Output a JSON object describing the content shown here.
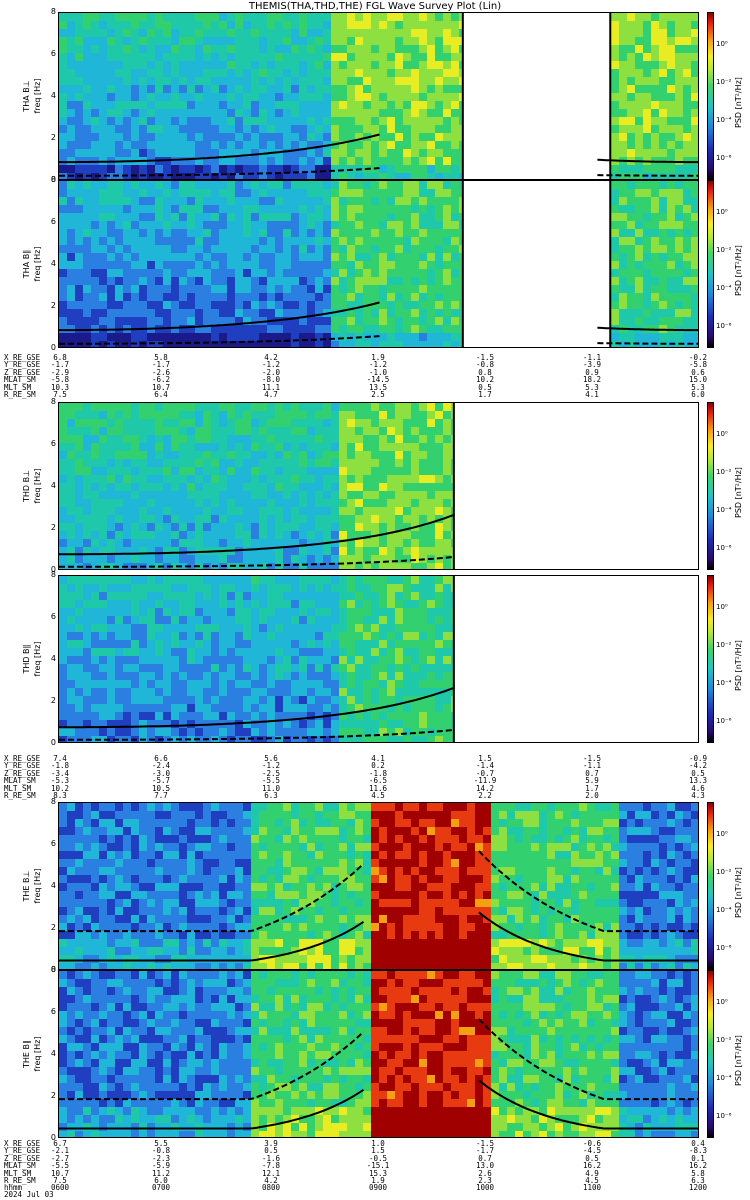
{
  "title": "THEMIS(THA,THD,THE) FGL Wave Survey Plot (Lin)",
  "chart_data": [
    {
      "type": "heatmap",
      "probe": "THA",
      "ylabel": "THA B⊥",
      "ylabel2": "freq [Hz]",
      "ylim": [
        0,
        8
      ],
      "yticks": [
        0,
        2,
        4,
        6,
        8
      ],
      "zlabel": "PSD [nT²/Hz]",
      "zticks": [
        "10⁰",
        "10⁻²",
        "10⁻⁴",
        "10⁻⁶"
      ],
      "data_gap": [
        0.63,
        0.86
      ],
      "burst_start": 0.41
    },
    {
      "type": "heatmap",
      "probe": "THA",
      "ylabel": "THA B∥",
      "ylabel2": "freq [Hz]",
      "ylim": [
        0,
        8
      ],
      "yticks": [
        0,
        2,
        4,
        6,
        8
      ],
      "zlabel": "PSD [nT²/Hz]",
      "zticks": [
        "10⁰",
        "10⁻²",
        "10⁻⁴",
        "10⁻⁶"
      ],
      "data_gap": [
        0.63,
        0.86
      ],
      "burst_start": 0.41
    },
    {
      "type": "heatmap",
      "probe": "THD",
      "ylabel": "THD B⊥",
      "ylabel2": "freq [Hz]",
      "ylim": [
        0,
        8
      ],
      "yticks": [
        0,
        2,
        4,
        6,
        8
      ],
      "zlabel": "PSD [nT²/Hz]",
      "zticks": [
        "10⁰",
        "10⁻²",
        "10⁻⁴",
        "10⁻⁶"
      ],
      "data_end": 0.616,
      "burst_start": 0.43
    },
    {
      "type": "heatmap",
      "probe": "THD",
      "ylabel": "THD B∥",
      "ylabel2": "freq [Hz]",
      "ylim": [
        0,
        8
      ],
      "yticks": [
        0,
        2,
        4,
        6,
        8
      ],
      "zlabel": "PSD [nT²/Hz]",
      "zticks": [
        "10⁰",
        "10⁻²",
        "10⁻⁴",
        "10⁻⁶"
      ],
      "data_end": 0.616,
      "burst_start": 0.43
    },
    {
      "type": "heatmap",
      "probe": "THE",
      "ylabel": "THE B⊥",
      "ylabel2": "freq [Hz]",
      "ylim": [
        0,
        8
      ],
      "yticks": [
        0,
        2,
        4,
        6,
        8
      ],
      "zlabel": "PSD [nT²/Hz]",
      "zticks": [
        "10⁰",
        "10⁻²",
        "10⁻⁴",
        "10⁻⁶"
      ],
      "burst": [
        0.295,
        0.855
      ],
      "red_band": [
        0.475,
        0.655
      ]
    },
    {
      "type": "heatmap",
      "probe": "THE",
      "ylabel": "THE B∥",
      "ylabel2": "freq [Hz]",
      "ylim": [
        0,
        8
      ],
      "yticks": [
        0,
        2,
        4,
        6,
        8
      ],
      "zlabel": "PSD [nT²/Hz]",
      "zticks": [
        "10⁰",
        "10⁻²",
        "10⁻⁴",
        "10⁻⁶"
      ],
      "burst": [
        0.295,
        0.855
      ],
      "red_band": [
        0.475,
        0.655
      ]
    }
  ],
  "ephemeris": [
    {
      "labels": [
        "X_RE_GSE",
        "Y_RE_GSE",
        "Z_RE_GSE",
        "MLAT_SM",
        "MLT_SM",
        "R_RE_SM"
      ],
      "columns": [
        [
          "6.8",
          "-1.7",
          "-2.9",
          "-5.8",
          "10.3",
          "7.5"
        ],
        [
          "5.8",
          "-1.7",
          "-2.6",
          "-6.2",
          "10.7",
          "6.4"
        ],
        [
          "4.2",
          "-1.2",
          "-2.0",
          "-8.0",
          "11.1",
          "4.7"
        ],
        [
          "1.9",
          "-1.2",
          "-1.0",
          "-14.5",
          "13.5",
          "2.5"
        ],
        [
          "-1.5",
          "-0.8",
          "0.8",
          "10.2",
          "0.5",
          "1.7"
        ],
        [
          "-1.1",
          "-3.9",
          "0.9",
          "18.2",
          "5.3",
          "4.1"
        ],
        [
          "-0.2",
          "-5.8",
          "0.6",
          "15.0",
          "5.3",
          "6.0"
        ]
      ]
    },
    {
      "labels": [
        "X_RE_GSE",
        "Y_RE_GSE",
        "Z_RE_GSE",
        "MLAT_SM",
        "MLT_SM",
        "R_RE_SM"
      ],
      "columns": [
        [
          "7.4",
          "-1.8",
          "-3.4",
          "-5.3",
          "10.2",
          "8.3"
        ],
        [
          "6.6",
          "-2.4",
          "-3.0",
          "-5.7",
          "10.5",
          "7.7"
        ],
        [
          "5.6",
          "-1.2",
          "-2.5",
          "-5.5",
          "11.0",
          "6.3"
        ],
        [
          "4.1",
          "0.2",
          "-1.8",
          "-6.5",
          "11.6",
          "4.5"
        ],
        [
          "1.5",
          "-1.4",
          "-0.7",
          "-11.9",
          "14.2",
          "2.2"
        ],
        [
          "-1.5",
          "-1.1",
          "0.7",
          "5.9",
          "1.7",
          "2.0"
        ],
        [
          "-0.9",
          "-4.2",
          "0.5",
          "13.3",
          "4.6",
          "4.3"
        ]
      ]
    },
    {
      "labels": [
        "X_RE_GSE",
        "Y_RE_GSE",
        "Z_RE_GSE",
        "MLAT_SM",
        "MLT_SM",
        "R_RE_SM",
        "hhmm"
      ],
      "columns": [
        [
          "6.7",
          "-2.1",
          "-2.7",
          "-5.5",
          "10.7",
          "7.5",
          "0600"
        ],
        [
          "5.5",
          "-0.8",
          "-2.3",
          "-5.9",
          "11.2",
          "6.0",
          "0700"
        ],
        [
          "3.9",
          "0.5",
          "-1.6",
          "-7.8",
          "12.1",
          "4.2",
          "0800"
        ],
        [
          "1.0",
          "1.5",
          "-0.5",
          "-15.1",
          "15.3",
          "1.9",
          "0900"
        ],
        [
          "-1.5",
          "-1.7",
          "0.7",
          "13.0",
          "2.6",
          "2.3",
          "1000"
        ],
        [
          "-0.6",
          "-4.5",
          "0.5",
          "16.2",
          "4.9",
          "4.5",
          "1100"
        ],
        [
          "0.4",
          "-8.3",
          "0.1",
          "16.2",
          "5.8",
          "6.3",
          "1200"
        ]
      ]
    }
  ],
  "date": "2024 Jul 03"
}
